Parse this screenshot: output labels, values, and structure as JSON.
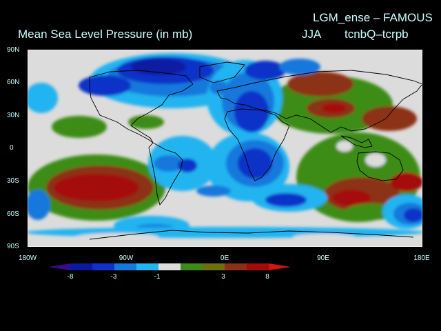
{
  "header": {
    "title": "Mean Sea Level Pressure (in mb)",
    "experiment": "LGM_ense – FAMOUS",
    "season": "JJA",
    "difference": "tcnbQ–tcrpb"
  },
  "axes": {
    "lat_labels": [
      "90N",
      "60N",
      "30N",
      "0",
      "30S",
      "60S",
      "90S"
    ],
    "lon_labels": [
      "180W",
      "90W",
      "0E",
      "90E",
      "180E"
    ]
  },
  "colorbar": {
    "tick_labels": [
      "-8",
      "-3",
      "-1",
      "3",
      "8"
    ],
    "colors": [
      "#3a0a8c",
      "#0a1aa0",
      "#1030c8",
      "#1478dc",
      "#20b4f0",
      "#dcdcdc",
      "#3c8c14",
      "#6e6e0a",
      "#8c3214",
      "#a50a0a",
      "#d21414"
    ]
  },
  "map": {
    "background_color": "#dcdcdc"
  }
}
